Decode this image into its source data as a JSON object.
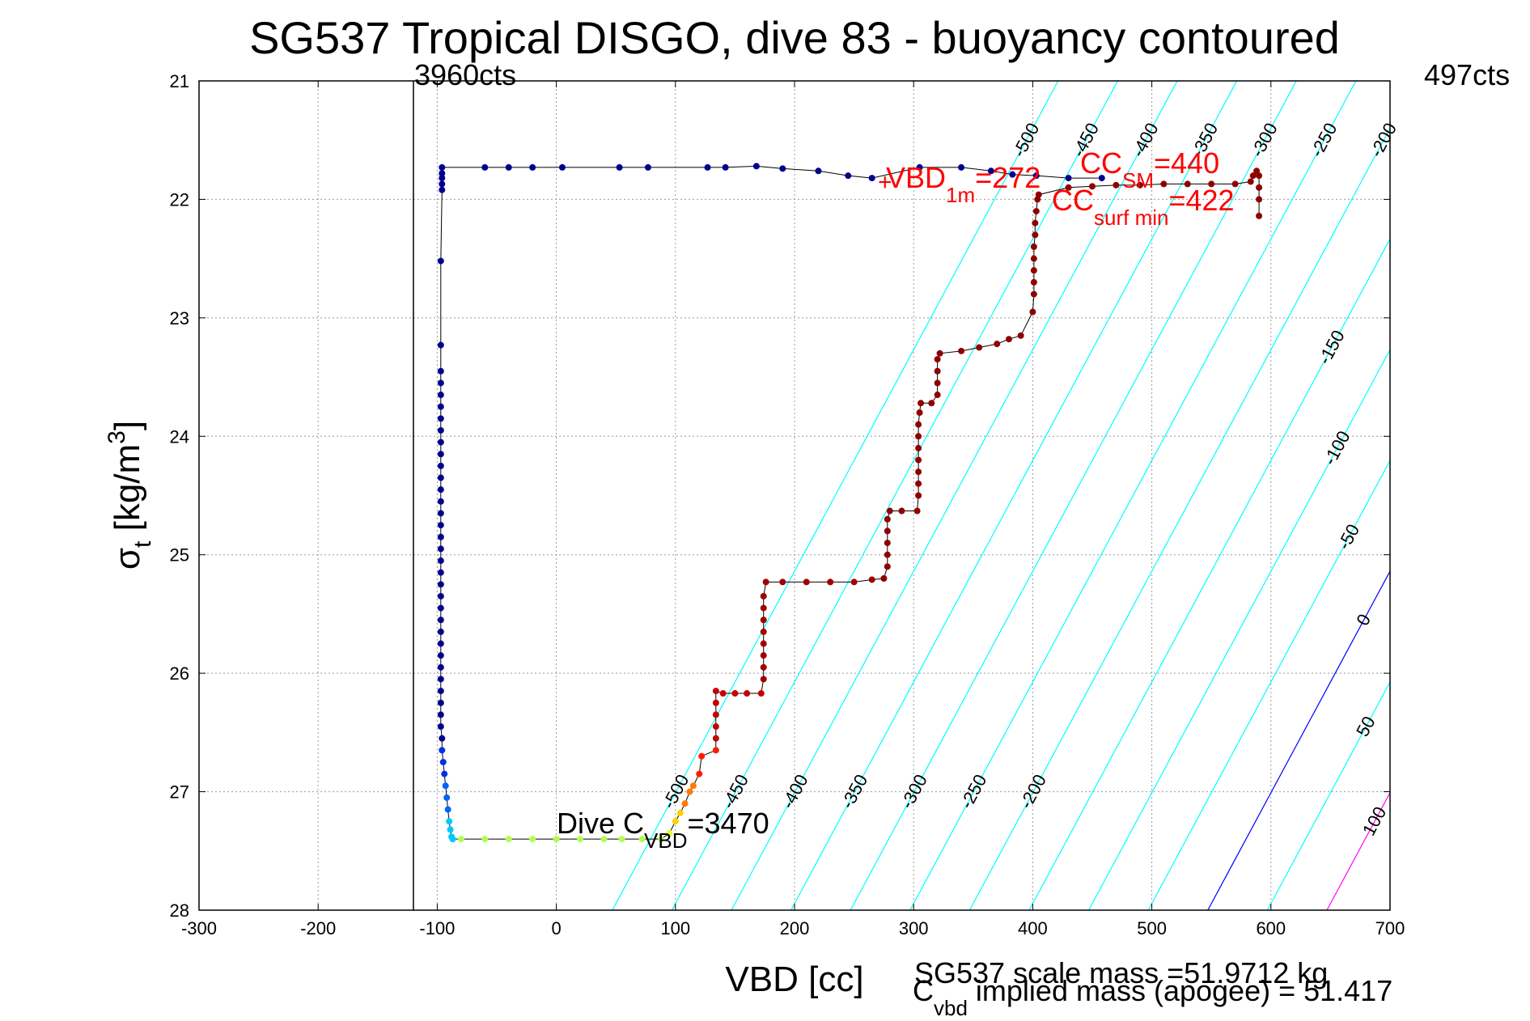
{
  "chart_data": {
    "type": "scatter",
    "title": "SG537 Tropical DISGO, dive 83 - buoyancy contoured",
    "xlabel": "VBD [cc]",
    "ylabel_main": "σ",
    "ylabel_sub": "t",
    "ylabel_unit_pre": " [kg/m",
    "ylabel_unit_sup": "3",
    "ylabel_unit_post": "]",
    "xlim": [
      -300,
      700
    ],
    "ylim": [
      21,
      28
    ],
    "y_reversed": true,
    "grid": true,
    "x_ticks": [
      -300,
      -200,
      -100,
      0,
      100,
      200,
      300,
      400,
      500,
      600,
      700
    ],
    "y_ticks": [
      21,
      22,
      23,
      24,
      25,
      26,
      27,
      28
    ],
    "top_left_text": "3960cts",
    "top_right_text": "497cts",
    "vertical_line_x": -120,
    "contours": {
      "slope_sigma_per_cc": 0.0187,
      "levels": [
        {
          "value": -500,
          "label": "-500",
          "color": "#00ffff"
        },
        {
          "value": -450,
          "label": "-450",
          "color": "#00ffff"
        },
        {
          "value": -400,
          "label": "-400",
          "color": "#00ffff"
        },
        {
          "value": -350,
          "label": "-350",
          "color": "#00ffff"
        },
        {
          "value": -300,
          "label": "-300",
          "color": "#00ffff"
        },
        {
          "value": -250,
          "label": "-250",
          "color": "#00ffff"
        },
        {
          "value": -200,
          "label": "-200",
          "color": "#00ffff"
        },
        {
          "value": -150,
          "label": "-150",
          "color": "#00ffff"
        },
        {
          "value": -100,
          "label": "-100",
          "color": "#00ffff"
        },
        {
          "value": -50,
          "label": "-50",
          "color": "#00ffff"
        },
        {
          "value": 0,
          "label": "0",
          "color": "#0000ff"
        },
        {
          "value": 50,
          "label": "50",
          "color": "#00ffff"
        },
        {
          "value": 100,
          "label": "100",
          "color": "#ff00ff"
        }
      ],
      "base_x_at_sigma28": {
        "-500": 47,
        "-450": 97,
        "-400": 147,
        "-350": 197,
        "-300": 247,
        "-250": 297,
        "-200": 347,
        "-150": 397,
        "-100": 447,
        "-50": 497,
        "0": 547,
        "50": 597,
        "100": 647
      }
    },
    "dive_series": {
      "name": "dive",
      "color": "#00008f",
      "points": [
        [
          -96,
          21.73
        ],
        [
          -96,
          21.78
        ],
        [
          -96,
          21.82
        ],
        [
          -96,
          21.87
        ],
        [
          -96,
          21.92
        ],
        [
          -97,
          22.52
        ],
        [
          -97,
          23.23
        ],
        [
          -97,
          23.45
        ],
        [
          -97,
          23.55
        ],
        [
          -97,
          23.65
        ],
        [
          -97,
          23.75
        ],
        [
          -97,
          23.85
        ],
        [
          -97,
          23.95
        ],
        [
          -97,
          24.05
        ],
        [
          -97,
          24.15
        ],
        [
          -97,
          24.25
        ],
        [
          -97,
          24.35
        ],
        [
          -97,
          24.45
        ],
        [
          -97,
          24.55
        ],
        [
          -97,
          24.65
        ],
        [
          -97,
          24.75
        ],
        [
          -97,
          24.85
        ],
        [
          -97,
          24.95
        ],
        [
          -97,
          25.05
        ],
        [
          -97,
          25.15
        ],
        [
          -97,
          25.25
        ],
        [
          -97,
          25.35
        ],
        [
          -97,
          25.45
        ],
        [
          -97,
          25.55
        ],
        [
          -97,
          25.65
        ],
        [
          -97,
          25.75
        ],
        [
          -97,
          25.85
        ],
        [
          -97,
          25.95
        ],
        [
          -97,
          26.05
        ],
        [
          -97,
          26.15
        ],
        [
          -97,
          26.25
        ],
        [
          -97,
          26.35
        ],
        [
          -97,
          26.45
        ],
        [
          -96,
          26.55
        ],
        [
          -96,
          26.65
        ],
        [
          -95,
          26.75
        ],
        [
          -94,
          26.85
        ],
        [
          -93,
          26.95
        ],
        [
          -92,
          27.05
        ],
        [
          -91,
          27.15
        ],
        [
          -90,
          27.25
        ],
        [
          -89,
          27.32
        ],
        [
          -88,
          27.38
        ],
        [
          -87,
          27.4
        ]
      ]
    },
    "bottom_series": {
      "name": "apogee",
      "color": "#b0ff50",
      "points": [
        [
          -80,
          27.4
        ],
        [
          -60,
          27.4
        ],
        [
          -40,
          27.4
        ],
        [
          -20,
          27.4
        ],
        [
          0,
          27.4
        ],
        [
          20,
          27.4
        ],
        [
          40,
          27.4
        ],
        [
          55,
          27.4
        ],
        [
          72,
          27.4
        ],
        [
          88,
          27.4
        ],
        [
          95,
          27.35
        ],
        [
          100,
          27.25
        ],
        [
          104,
          27.18
        ]
      ]
    },
    "climb_series": {
      "name": "climb",
      "color": "#8f0000",
      "points": [
        [
          108,
          27.1
        ],
        [
          112,
          27.0
        ],
        [
          115,
          26.95
        ],
        [
          120,
          26.85
        ],
        [
          122,
          26.7
        ],
        [
          134,
          26.65
        ],
        [
          134,
          26.55
        ],
        [
          134,
          26.45
        ],
        [
          134,
          26.35
        ],
        [
          134,
          26.25
        ],
        [
          134,
          26.15
        ],
        [
          140,
          26.17
        ],
        [
          150,
          26.17
        ],
        [
          160,
          26.17
        ],
        [
          172,
          26.17
        ],
        [
          174,
          26.05
        ],
        [
          174,
          25.95
        ],
        [
          174,
          25.85
        ],
        [
          174,
          25.75
        ],
        [
          174,
          25.65
        ],
        [
          174,
          25.55
        ],
        [
          174,
          25.45
        ],
        [
          174,
          25.35
        ],
        [
          176,
          25.23
        ],
        [
          190,
          25.23
        ],
        [
          210,
          25.23
        ],
        [
          230,
          25.23
        ],
        [
          250,
          25.23
        ],
        [
          265,
          25.21
        ],
        [
          275,
          25.2
        ],
        [
          278,
          25.1
        ],
        [
          278,
          25.0
        ],
        [
          278,
          24.9
        ],
        [
          278,
          24.8
        ],
        [
          278,
          24.7
        ],
        [
          280,
          24.63
        ],
        [
          290,
          24.63
        ],
        [
          303,
          24.63
        ],
        [
          304,
          24.5
        ],
        [
          304,
          24.4
        ],
        [
          304,
          24.3
        ],
        [
          304,
          24.2
        ],
        [
          304,
          24.1
        ],
        [
          304,
          24.0
        ],
        [
          304,
          23.9
        ],
        [
          305,
          23.8
        ],
        [
          306,
          23.72
        ],
        [
          315,
          23.72
        ],
        [
          320,
          23.65
        ],
        [
          320,
          23.55
        ],
        [
          320,
          23.45
        ],
        [
          320,
          23.35
        ],
        [
          322,
          23.3
        ],
        [
          340,
          23.28
        ],
        [
          355,
          23.25
        ],
        [
          370,
          23.22
        ],
        [
          380,
          23.18
        ],
        [
          390,
          23.15
        ],
        [
          400,
          22.95
        ],
        [
          401,
          22.8
        ],
        [
          401,
          22.7
        ],
        [
          401,
          22.6
        ],
        [
          401,
          22.5
        ],
        [
          401,
          22.4
        ],
        [
          402,
          22.3
        ],
        [
          402,
          22.2
        ],
        [
          403,
          22.1
        ],
        [
          404,
          22.0
        ],
        [
          405,
          21.96
        ],
        [
          430,
          21.9
        ],
        [
          450,
          21.89
        ],
        [
          470,
          21.88
        ],
        [
          490,
          21.88
        ],
        [
          510,
          21.87
        ],
        [
          530,
          21.87
        ],
        [
          550,
          21.87
        ],
        [
          570,
          21.87
        ],
        [
          583,
          21.85
        ],
        [
          585,
          21.8
        ],
        [
          588,
          21.76
        ],
        [
          590,
          21.8
        ],
        [
          590,
          21.9
        ],
        [
          590,
          22.0
        ],
        [
          590,
          22.14
        ]
      ]
    },
    "surface_series": {
      "name": "surface",
      "color": "#00008f",
      "points": [
        [
          -60,
          21.73
        ],
        [
          -40,
          21.73
        ],
        [
          -20,
          21.73
        ],
        [
          5,
          21.73
        ],
        [
          53,
          21.73
        ],
        [
          77,
          21.73
        ],
        [
          127,
          21.73
        ],
        [
          142,
          21.73
        ],
        [
          168,
          21.72
        ],
        [
          190,
          21.74
        ],
        [
          220,
          21.76
        ],
        [
          245,
          21.8
        ],
        [
          265,
          21.82
        ],
        [
          305,
          21.73
        ],
        [
          340,
          21.73
        ],
        [
          365,
          21.76
        ],
        [
          383,
          21.79
        ],
        [
          403,
          21.8
        ],
        [
          430,
          21.82
        ],
        [
          458,
          21.82
        ]
      ]
    },
    "annotations": {
      "vbd_1m_pre": "VBD",
      "vbd_1m_sub": "1m",
      "vbd_1m_post": "=272",
      "cc_sm_pre": "CC",
      "cc_sm_sub": "SM",
      "cc_sm_post": "=440",
      "cc_surf_pre": "CC",
      "cc_surf_sub": "surf min",
      "cc_surf_post": "=422",
      "dive_c_pre": "Dive C",
      "dive_c_sub": "VBD",
      "dive_c_post": "=3470",
      "vbd1m_marker": "+"
    },
    "footer": {
      "scale_mass": "SG537 scale mass =51.9712 kg",
      "implied_mass_pre": "C",
      "implied_mass_sub": "vbd",
      "implied_mass_post": " implied mass (apogee) = 51.417"
    }
  }
}
